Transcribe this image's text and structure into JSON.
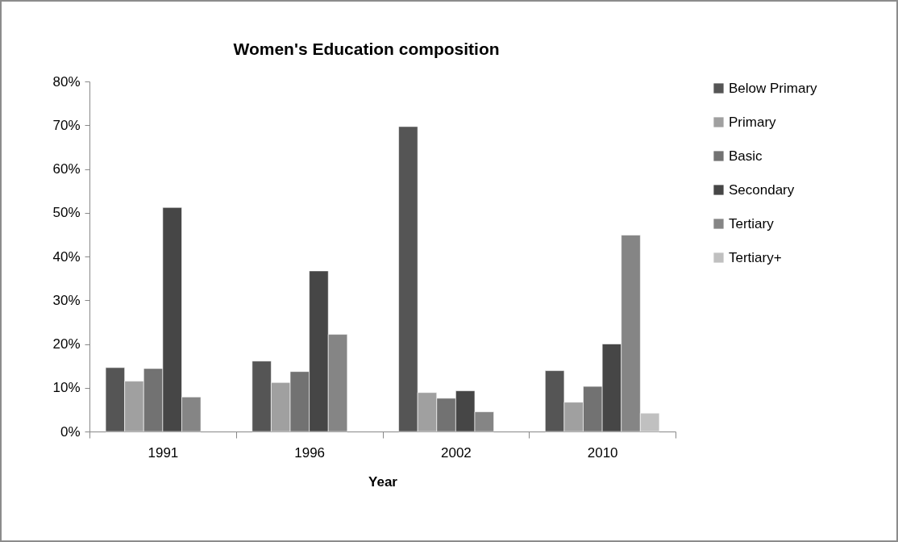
{
  "chart_data": {
    "type": "bar",
    "title": "Women's Education composition",
    "xlabel": "Year",
    "categories": [
      "1991",
      "1996",
      "2002",
      "2010"
    ],
    "series": [
      {
        "name": "Below Primary",
        "color": "#555555",
        "values": [
          14.6,
          16.1,
          69.7,
          13.9
        ]
      },
      {
        "name": "Primary",
        "color": "#a0a0a0",
        "values": [
          11.5,
          11.2,
          8.9,
          6.7
        ]
      },
      {
        "name": "Basic",
        "color": "#727272",
        "values": [
          14.4,
          13.7,
          7.6,
          10.3
        ]
      },
      {
        "name": "Secondary",
        "color": "#464646",
        "values": [
          51.2,
          36.7,
          9.3,
          20.0
        ]
      },
      {
        "name": "Tertiary",
        "color": "#858585",
        "values": [
          7.9,
          22.2,
          4.5,
          44.9
        ]
      },
      {
        "name": "Tertiary+",
        "color": "#c0c0c0",
        "values": [
          null,
          null,
          null,
          4.2
        ]
      }
    ],
    "ylim": [
      0,
      80
    ],
    "yticks": [
      {
        "value": 0,
        "label": "0%"
      },
      {
        "value": 10,
        "label": "10%"
      },
      {
        "value": 20,
        "label": "20%"
      },
      {
        "value": 30,
        "label": "30%"
      },
      {
        "value": 40,
        "label": "40%"
      },
      {
        "value": 50,
        "label": "50%"
      },
      {
        "value": 60,
        "label": "60%"
      },
      {
        "value": 70,
        "label": "70%"
      },
      {
        "value": 80,
        "label": "80%"
      }
    ],
    "grid": false,
    "legend": "right"
  }
}
